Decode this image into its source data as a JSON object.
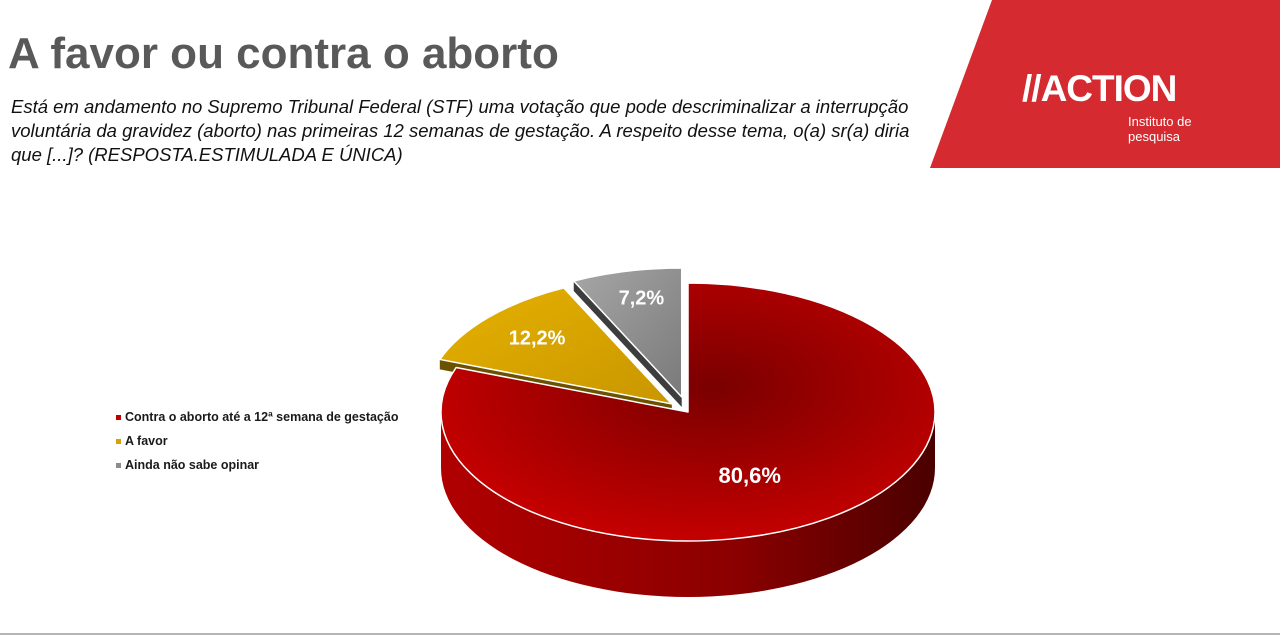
{
  "title": "A favor ou contra o aborto",
  "question": "Está em andamento no Supremo Tribunal Federal (STF) uma votação que pode descriminalizar a interrupção voluntária da gravidez (aborto) nas primeiras 12 semanas de gestação. A respeito desse tema, o(a) sr(a) diria que [...]? (RESPOSTA.ESTIMULADA E ÚNICA)",
  "brand": {
    "name": "ACTION",
    "mark_prefix": "//",
    "subtitle": "Instituto de pesquisa",
    "color": "#d42a30"
  },
  "chart_data": {
    "type": "pie",
    "style": "3d-exploded",
    "legend_position": "left",
    "categories": [
      "Contra o aborto até a 12ª semana de gestação",
      "A favor",
      "Ainda não sabe opinar"
    ],
    "values": [
      80.6,
      12.2,
      7.2
    ],
    "labels": [
      "80,6%",
      "12,2%",
      "7,2%"
    ],
    "colors": [
      "#c00000",
      "#d9a200",
      "#8c8c8c"
    ]
  }
}
